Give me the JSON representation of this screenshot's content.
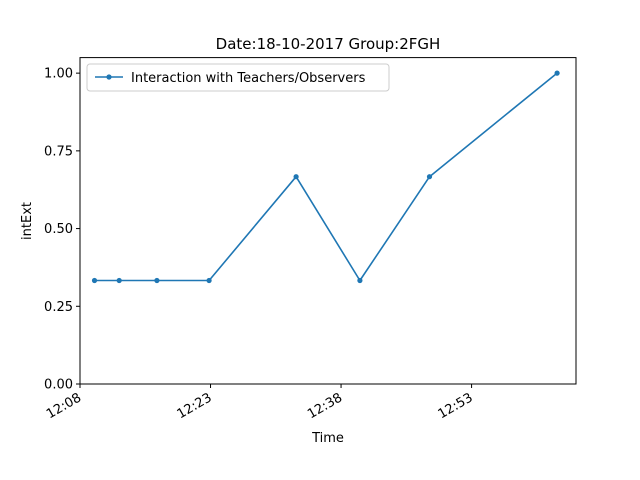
{
  "chart_data": {
    "type": "line",
    "title": "Date:18-10-2017  Group:2FGH",
    "xlabel": "Time",
    "ylabel": "intExt",
    "x_ticks": [
      "12:08",
      "12:23",
      "12:38",
      "12:53"
    ],
    "y_ticks": [
      "0.00",
      "0.25",
      "0.50",
      "0.75",
      "1.00"
    ],
    "ylim": [
      0.0,
      1.05
    ],
    "xlim": [
      "12:08",
      "13:05"
    ],
    "legend_placement": "upper-left",
    "series": [
      {
        "name": "Interaction with Teachers/Observers",
        "color": "#1f77b4",
        "x": [
          "12:09:40",
          "12:12:30",
          "12:16:50",
          "12:22:50",
          "12:32:50",
          "12:40:10",
          "12:48:10",
          "13:02:50"
        ],
        "y": [
          0.333,
          0.333,
          0.333,
          0.333,
          0.667,
          0.333,
          0.667,
          1.0
        ]
      }
    ]
  }
}
